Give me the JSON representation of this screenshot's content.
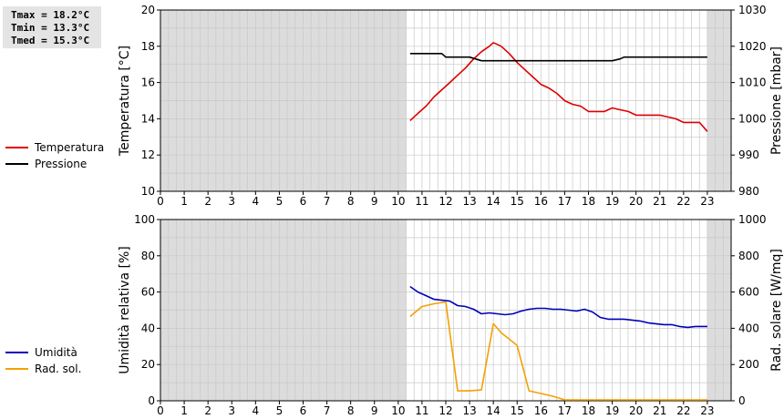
{
  "stats": {
    "tmax": "Tmax = 18.2°C",
    "tmin": "Tmin = 13.3°C",
    "tmed": "Tmed = 15.3°C"
  },
  "chart_data": [
    {
      "type": "line",
      "title": "",
      "xlabel": "",
      "ylabel_left": "Temperatura [°C]",
      "ylabel_right": "Pressione [mbar]",
      "xlim": [
        0,
        24
      ],
      "ylim_left": [
        10,
        20
      ],
      "ylim_right": [
        980,
        1030
      ],
      "x_ticks": [
        "0",
        "1",
        "2",
        "3",
        "4",
        "5",
        "6",
        "7",
        "8",
        "9",
        "10",
        "11",
        "12",
        "13",
        "14",
        "15",
        "16",
        "17",
        "18",
        "19",
        "20",
        "21",
        "22",
        "23"
      ],
      "y_ticks_left": [
        "10",
        "12",
        "14",
        "16",
        "18",
        "20"
      ],
      "y_ticks_right": [
        "980",
        "990",
        "1000",
        "1010",
        "1020",
        "1030"
      ],
      "grid": true,
      "shaded_ranges": [
        [
          0,
          10.33
        ],
        [
          23.0,
          24
        ]
      ],
      "legend_placement": "left",
      "series": [
        {
          "name": "Temperatura",
          "axis": "left",
          "color": "#dd0000",
          "x": [
            10.5,
            10.83,
            11.17,
            11.5,
            11.83,
            12.17,
            12.5,
            12.83,
            13.17,
            13.5,
            13.83,
            14.0,
            14.17,
            14.33,
            14.67,
            15.0,
            15.33,
            15.67,
            16.0,
            16.33,
            16.67,
            17.0,
            17.33,
            17.67,
            18.0,
            18.33,
            18.67,
            19.0,
            19.33,
            19.67,
            20.0,
            20.33,
            20.67,
            21.0,
            21.33,
            21.67,
            22.0,
            22.33,
            22.67,
            23.0
          ],
          "y": [
            13.9,
            14.3,
            14.7,
            15.2,
            15.6,
            16.0,
            16.4,
            16.8,
            17.3,
            17.7,
            18.0,
            18.2,
            18.1,
            18.0,
            17.6,
            17.1,
            16.7,
            16.3,
            15.9,
            15.7,
            15.4,
            15.0,
            14.8,
            14.7,
            14.4,
            14.4,
            14.4,
            14.6,
            14.5,
            14.4,
            14.2,
            14.2,
            14.2,
            14.2,
            14.1,
            14.0,
            13.8,
            13.8,
            13.8,
            13.3
          ]
        },
        {
          "name": "Pressione",
          "axis": "right",
          "color": "#000000",
          "x": [
            10.5,
            11.0,
            11.5,
            11.83,
            12.0,
            12.5,
            13.0,
            13.5,
            14.0,
            14.5,
            15.0,
            15.5,
            16.0,
            16.5,
            17.0,
            17.5,
            18.0,
            18.5,
            18.83,
            19.0,
            19.33,
            19.5,
            20.0,
            20.5,
            21.0,
            21.5,
            22.0,
            22.5,
            23.0
          ],
          "y": [
            1018,
            1018,
            1018,
            1018,
            1017,
            1017,
            1017,
            1016,
            1016,
            1016,
            1016,
            1016,
            1016,
            1016,
            1016,
            1016,
            1016,
            1016,
            1016,
            1016,
            1016.5,
            1017,
            1017,
            1017,
            1017,
            1017,
            1017,
            1017,
            1017
          ]
        }
      ]
    },
    {
      "type": "line",
      "title": "",
      "xlabel": "",
      "ylabel_left": "Umidità relativa [%]",
      "ylabel_right": "Rad. solare [W/mq]",
      "xlim": [
        0,
        24
      ],
      "ylim_left": [
        0,
        100
      ],
      "ylim_right": [
        0,
        1000
      ],
      "x_ticks": [
        "0",
        "1",
        "2",
        "3",
        "4",
        "5",
        "6",
        "7",
        "8",
        "9",
        "10",
        "11",
        "12",
        "13",
        "14",
        "15",
        "16",
        "17",
        "18",
        "19",
        "20",
        "21",
        "22",
        "23"
      ],
      "y_ticks_left": [
        "0",
        "20",
        "40",
        "60",
        "80",
        "100"
      ],
      "y_ticks_right": [
        "0",
        "200",
        "400",
        "600",
        "800",
        "1000"
      ],
      "grid": true,
      "shaded_ranges": [
        [
          0,
          10.33
        ],
        [
          23.0,
          24
        ]
      ],
      "legend_placement": "left",
      "series": [
        {
          "name": "Umidità",
          "axis": "left",
          "color": "#0000bb",
          "x": [
            10.5,
            10.83,
            11.17,
            11.5,
            11.83,
            12.17,
            12.5,
            12.83,
            13.17,
            13.5,
            13.83,
            14.17,
            14.5,
            14.83,
            15.17,
            15.5,
            15.83,
            16.17,
            16.5,
            16.83,
            17.17,
            17.5,
            17.83,
            18.17,
            18.5,
            18.83,
            19.17,
            19.5,
            19.83,
            20.17,
            20.5,
            20.83,
            21.17,
            21.5,
            21.83,
            22.17,
            22.5,
            22.83,
            23.0
          ],
          "y": [
            63,
            60,
            58,
            56,
            55.5,
            55,
            52.5,
            52,
            50.5,
            48,
            48.5,
            48,
            47.5,
            48,
            49.5,
            50.5,
            51,
            51,
            50.5,
            50.5,
            50,
            49.5,
            50.5,
            49,
            46,
            45,
            45,
            45,
            44.5,
            44,
            43,
            42.5,
            42,
            42,
            41,
            40.5,
            41,
            41,
            41
          ]
        },
        {
          "name": "Rad. sol.",
          "axis": "right",
          "color": "#f5a000",
          "x": [
            10.5,
            11.0,
            11.5,
            12.0,
            12.5,
            13.0,
            13.5,
            14.0,
            14.33,
            14.67,
            15.0,
            15.5,
            16.0,
            16.5,
            17.0,
            17.5,
            18.0,
            18.5,
            19.0,
            19.5,
            20.0,
            20.5,
            21.0,
            21.5,
            22.0,
            22.5,
            23.0
          ],
          "y": [
            465,
            520,
            535,
            545,
            55,
            55,
            60,
            425,
            375,
            340,
            305,
            55,
            40,
            25,
            5,
            5,
            5,
            5,
            5,
            5,
            5,
            5,
            5,
            5,
            5,
            5,
            5
          ]
        }
      ]
    }
  ]
}
